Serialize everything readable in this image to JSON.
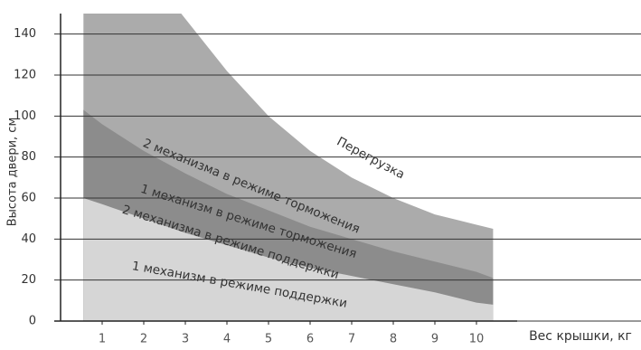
{
  "chart_data": {
    "type": "area",
    "y_label": "Высота двери, см",
    "x_label": "Вес крышки, кг",
    "ylim": [
      0,
      150
    ],
    "yticks": [
      0,
      20,
      40,
      60,
      80,
      100,
      120,
      140
    ],
    "xlim": [
      0,
      11
    ],
    "xticks": [
      1,
      2,
      3,
      4,
      5,
      6,
      7,
      8,
      9,
      10
    ],
    "grid": true,
    "series": [
      {
        "color": "#ababab",
        "x": [
          0.55,
          2.9,
          4,
          5,
          6,
          7,
          8,
          9,
          10,
          10.4
        ],
        "values": [
          150,
          150,
          122,
          100,
          83,
          70,
          60,
          52,
          47,
          45
        ]
      },
      {
        "color": "#8c8c8c",
        "x": [
          0.55,
          1,
          2,
          3,
          4,
          5,
          6,
          7,
          8,
          9,
          10,
          10.4
        ],
        "values": [
          103,
          96,
          83,
          72,
          62,
          54,
          46,
          40,
          34,
          29,
          24,
          21
        ]
      },
      {
        "color": "#d6d6d6",
        "x": [
          0.55,
          1,
          2,
          3,
          4,
          5,
          6,
          7,
          8,
          9,
          10,
          10.4
        ],
        "values": [
          60,
          57,
          50,
          43,
          37,
          31,
          26,
          22,
          18,
          14,
          9,
          8
        ]
      }
    ],
    "annotations": [
      "Перегрузка",
      "2 механизма в режиме торможения",
      "1 механизм в режиме торможения",
      "2 механизма в режиме поддержки",
      "1 механизм в режиме поддержки"
    ]
  }
}
